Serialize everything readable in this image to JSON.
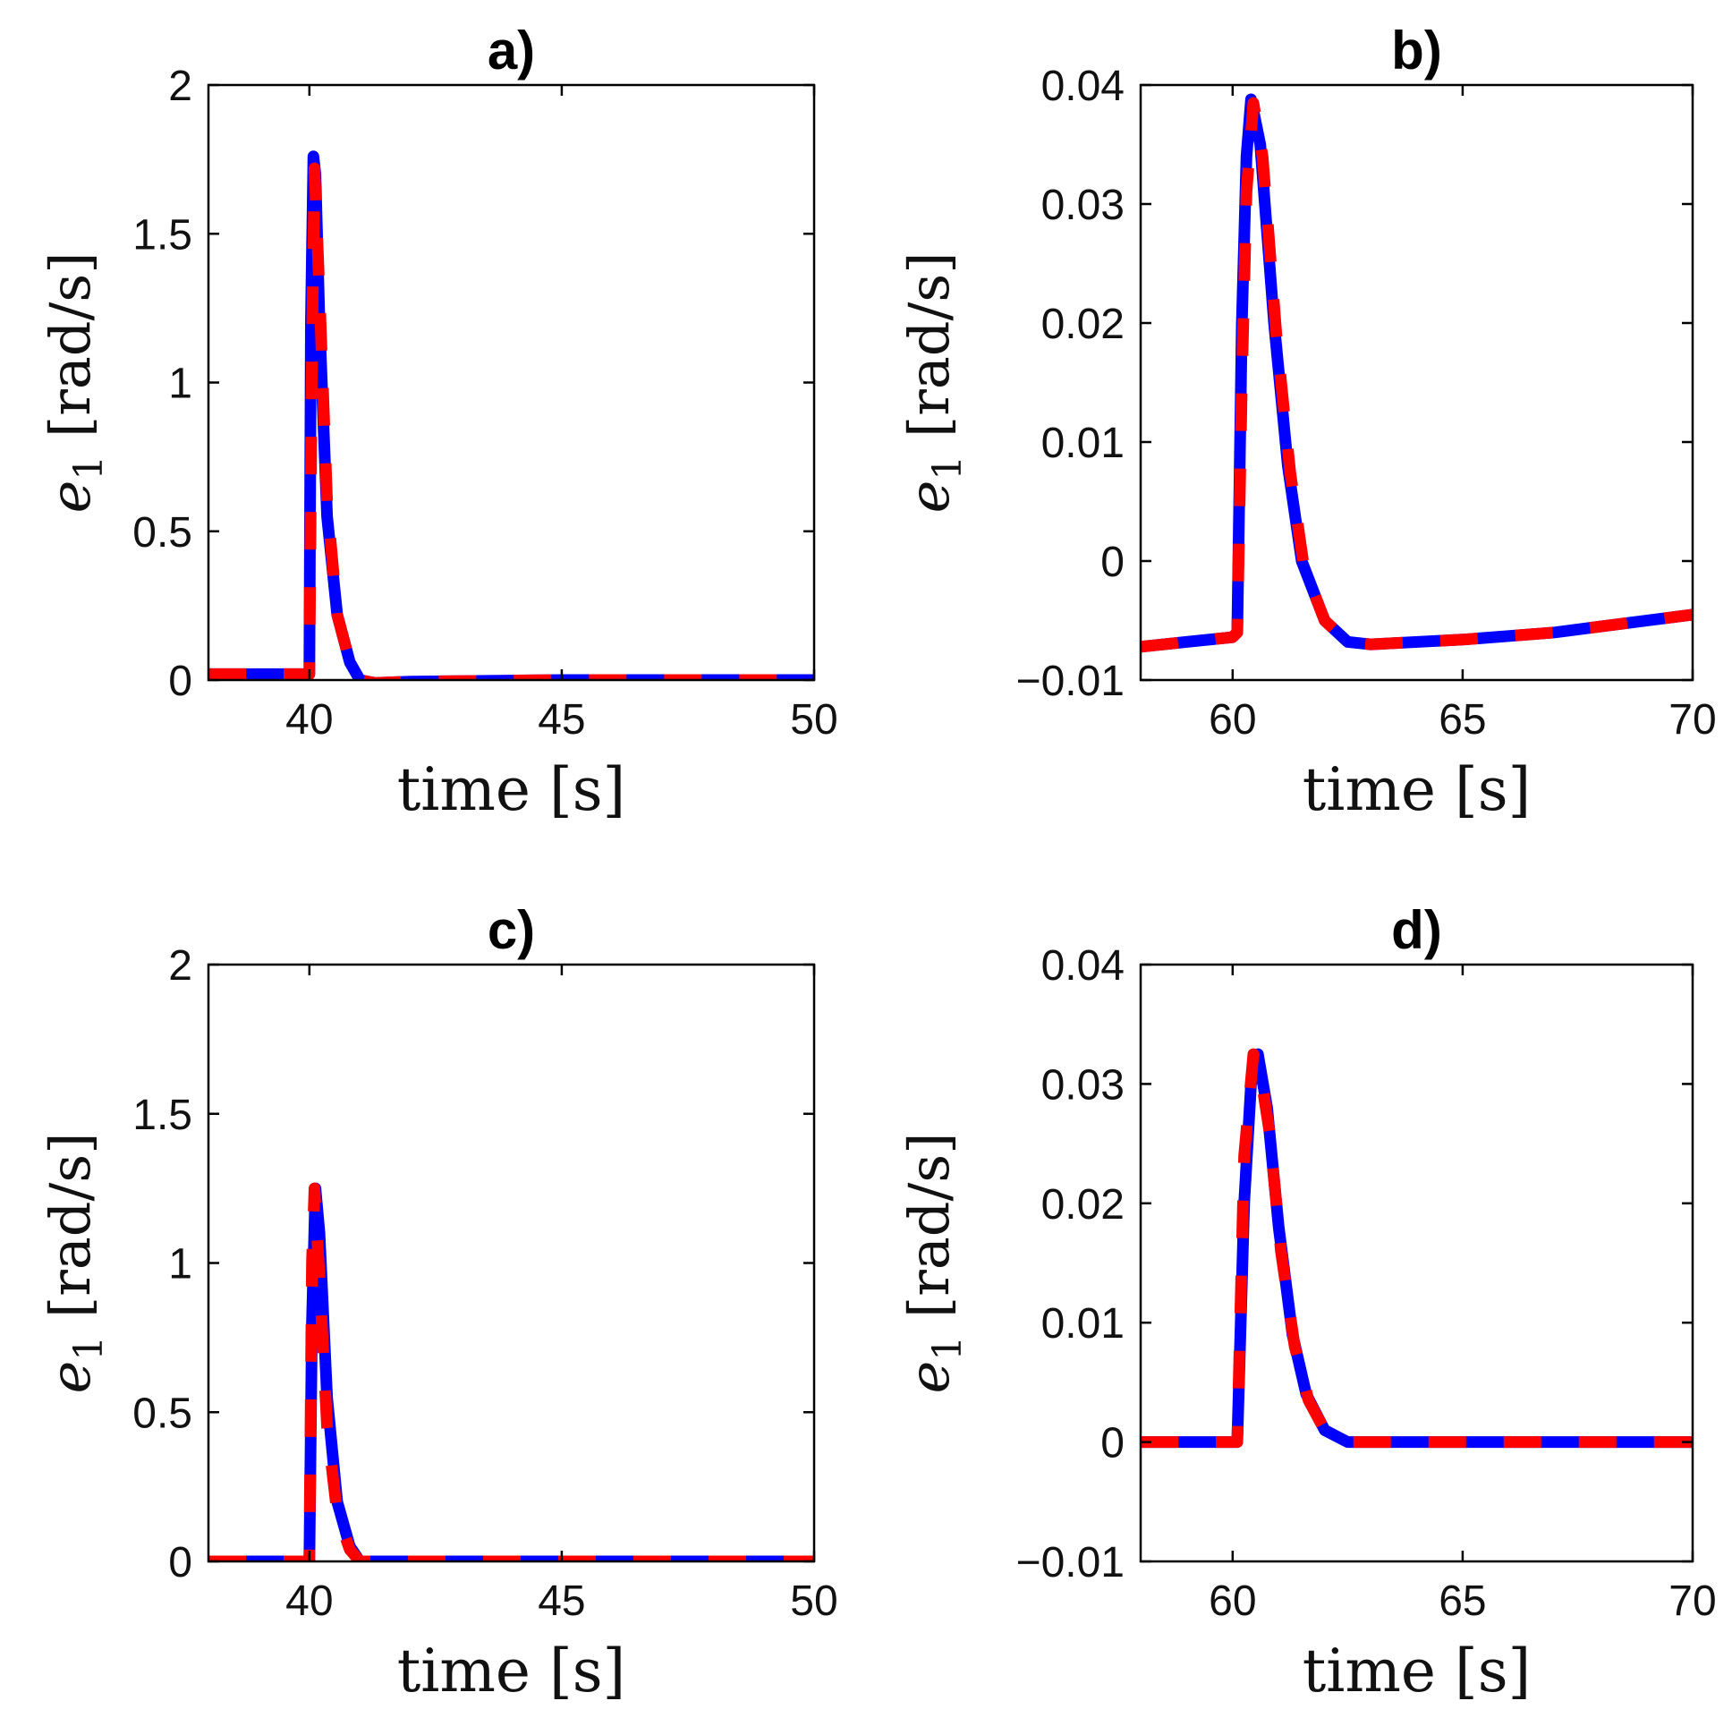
{
  "chart_data": [
    {
      "type": "line",
      "title": "a)",
      "xlabel": "time [s]",
      "ylabel": "e1 [rad/s]",
      "xlim": [
        38,
        50
      ],
      "ylim": [
        0,
        2
      ],
      "xticks": [
        "40",
        "45",
        "50"
      ],
      "yticks": [
        "0",
        "0.5",
        "1",
        "1.5",
        "2"
      ],
      "grid": false,
      "series": [
        {
          "name": "blue (solid/dashed)",
          "color": "#0000ff",
          "x": [
            38,
            39.9,
            40.0,
            40.03,
            40.08,
            40.12,
            40.2,
            40.35,
            40.55,
            40.8,
            41.0,
            41.3,
            42,
            45,
            50
          ],
          "y": [
            0.02,
            0.02,
            0.02,
            1.2,
            1.76,
            1.7,
            1.2,
            0.55,
            0.22,
            0.06,
            0.0,
            -0.01,
            -0.005,
            0.0,
            0.0
          ]
        },
        {
          "name": "red (solid/dashed)",
          "color": "#ff0000",
          "x": [
            38,
            39.9,
            40.0,
            40.05,
            40.1,
            40.2,
            40.35,
            40.55,
            40.8,
            41.0,
            41.3,
            42,
            45,
            50
          ],
          "y": [
            0.02,
            0.02,
            0.02,
            1.1,
            1.72,
            1.3,
            0.6,
            0.22,
            0.06,
            0.0,
            -0.01,
            -0.005,
            0.0,
            0.0
          ]
        }
      ]
    },
    {
      "type": "line",
      "title": "b)",
      "xlabel": "time [s]",
      "ylabel": "e1 [rad/s]",
      "xlim": [
        58,
        70
      ],
      "ylim": [
        -0.01,
        0.04
      ],
      "xticks": [
        "60",
        "65",
        "70"
      ],
      "yticks": [
        "−0.01",
        "0",
        "0.01",
        "0.02",
        "0.03",
        "0.04"
      ],
      "grid": false,
      "series": [
        {
          "name": "blue (solid/dashed)",
          "color": "#0000ff",
          "x": [
            58,
            59,
            60,
            60.1,
            60.2,
            60.3,
            60.4,
            60.6,
            60.9,
            61.2,
            61.5,
            62.0,
            62.5,
            63,
            65,
            67,
            70
          ],
          "y": [
            -0.0072,
            -0.0068,
            -0.0064,
            -0.006,
            0.02,
            0.034,
            0.0388,
            0.035,
            0.02,
            0.008,
            0.0,
            -0.005,
            -0.0068,
            -0.007,
            -0.0066,
            -0.006,
            -0.0045
          ]
        },
        {
          "name": "red (solid/dashed)",
          "color": "#ff0000",
          "x": [
            58,
            59,
            60,
            60.1,
            60.2,
            60.3,
            60.45,
            60.65,
            60.95,
            61.25,
            61.55,
            62.0,
            62.5,
            63,
            65,
            67,
            70
          ],
          "y": [
            -0.0072,
            -0.0068,
            -0.0064,
            -0.006,
            0.015,
            0.031,
            0.0385,
            0.034,
            0.019,
            0.0075,
            -0.0005,
            -0.005,
            -0.0068,
            -0.007,
            -0.0066,
            -0.006,
            -0.0045
          ]
        }
      ]
    },
    {
      "type": "line",
      "title": "c)",
      "xlabel": "time [s]",
      "ylabel": "e1 [rad/s]",
      "xlim": [
        38,
        50
      ],
      "ylim": [
        0,
        2
      ],
      "xticks": [
        "40",
        "45",
        "50"
      ],
      "yticks": [
        "0",
        "0.5",
        "1",
        "1.5",
        "2"
      ],
      "grid": false,
      "series": [
        {
          "name": "blue (solid/dashed)",
          "color": "#0000ff",
          "x": [
            38,
            39.9,
            40.0,
            40.05,
            40.12,
            40.2,
            40.35,
            40.55,
            40.8,
            41.0,
            42,
            45,
            50
          ],
          "y": [
            0.0,
            0.0,
            0.0,
            0.8,
            1.25,
            1.1,
            0.55,
            0.2,
            0.05,
            0.0,
            0.0,
            0.0,
            0.0
          ]
        },
        {
          "name": "red (solid/dashed)",
          "color": "#ff0000",
          "x": [
            38,
            39.9,
            40.0,
            40.05,
            40.1,
            40.2,
            40.35,
            40.55,
            40.8,
            41.0,
            42,
            45,
            50
          ],
          "y": [
            0.0,
            0.0,
            0.0,
            1.0,
            1.25,
            0.95,
            0.45,
            0.16,
            0.04,
            0.0,
            0.0,
            0.0,
            0.0
          ]
        }
      ]
    },
    {
      "type": "line",
      "title": "d)",
      "xlabel": "time [s]",
      "ylabel": "e1 [rad/s]",
      "xlim": [
        58,
        70
      ],
      "ylim": [
        -0.01,
        0.04
      ],
      "xticks": [
        "60",
        "65",
        "70"
      ],
      "yticks": [
        "−0.01",
        "0",
        "0.01",
        "0.02",
        "0.03",
        "0.04"
      ],
      "grid": false,
      "series": [
        {
          "name": "blue (solid/dashed)",
          "color": "#0000ff",
          "x": [
            58,
            60,
            60.1,
            60.25,
            60.4,
            60.55,
            60.75,
            61.0,
            61.3,
            61.6,
            62.0,
            62.5,
            63,
            65,
            70
          ],
          "y": [
            0.0,
            0.0,
            0.0,
            0.02,
            0.03,
            0.0325,
            0.028,
            0.018,
            0.009,
            0.004,
            0.001,
            0.0,
            0.0,
            0.0,
            0.0
          ]
        },
        {
          "name": "red (solid/dashed)",
          "color": "#ff0000",
          "x": [
            58,
            60,
            60.1,
            60.25,
            60.45,
            60.6,
            60.8,
            61.05,
            61.35,
            61.65,
            62.0,
            62.5,
            63,
            65,
            70
          ],
          "y": [
            0.0,
            0.0,
            0.0,
            0.024,
            0.0325,
            0.031,
            0.026,
            0.016,
            0.008,
            0.0035,
            0.001,
            0.0,
            0.0,
            0.0,
            0.0
          ]
        }
      ]
    }
  ]
}
